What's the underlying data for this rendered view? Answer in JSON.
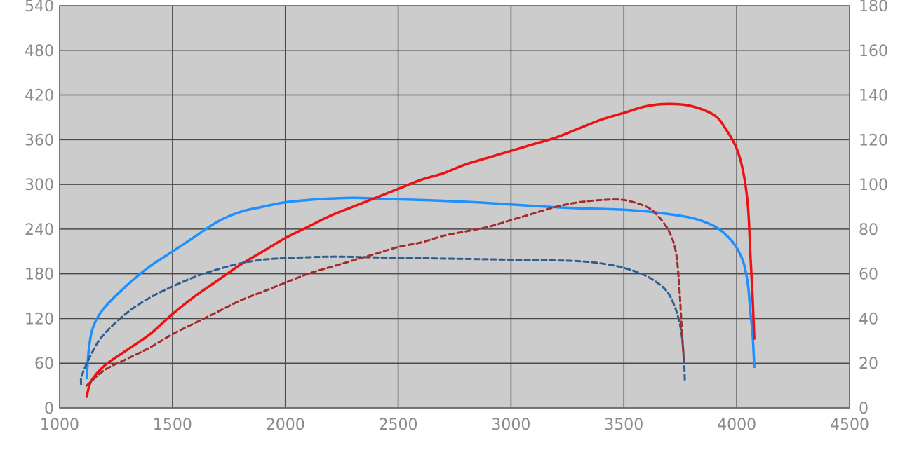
{
  "chart_data": {
    "type": "line",
    "title": "",
    "xlabel": "",
    "ylabel": "",
    "y2label": "",
    "xlim": [
      1000,
      4500
    ],
    "ylim": [
      0,
      540
    ],
    "y2lim": [
      0,
      180
    ],
    "grid": true,
    "xticks": [
      1000,
      1500,
      2000,
      2500,
      3000,
      3500,
      4000,
      4500
    ],
    "yticks": [
      0,
      60,
      120,
      180,
      240,
      300,
      360,
      420,
      480,
      540
    ],
    "y2ticks": [
      0,
      20,
      40,
      60,
      80,
      100,
      120,
      140,
      160,
      180
    ],
    "colors": {
      "plot_background": "#cccccc",
      "grid": "#4a4a4a",
      "tick_text": "#8a8a8a"
    },
    "series": [
      {
        "axis": "left",
        "color": "#1e90ff",
        "dash": "solid",
        "points": [
          [
            1120,
            40
          ],
          [
            1130,
            80
          ],
          [
            1150,
            110
          ],
          [
            1200,
            135
          ],
          [
            1300,
            165
          ],
          [
            1400,
            190
          ],
          [
            1500,
            210
          ],
          [
            1600,
            230
          ],
          [
            1700,
            250
          ],
          [
            1800,
            263
          ],
          [
            1900,
            270
          ],
          [
            2000,
            276
          ],
          [
            2100,
            279
          ],
          [
            2200,
            281
          ],
          [
            2300,
            282
          ],
          [
            2400,
            281
          ],
          [
            2500,
            280
          ],
          [
            2700,
            278
          ],
          [
            2900,
            275
          ],
          [
            3100,
            271
          ],
          [
            3300,
            268
          ],
          [
            3500,
            266
          ],
          [
            3650,
            262
          ],
          [
            3800,
            255
          ],
          [
            3900,
            244
          ],
          [
            3960,
            230
          ],
          [
            4000,
            215
          ],
          [
            4030,
            195
          ],
          [
            4050,
            165
          ],
          [
            4060,
            130
          ],
          [
            4070,
            100
          ],
          [
            4078,
            55
          ]
        ]
      },
      {
        "axis": "right",
        "color": "#ee1111",
        "dash": "solid",
        "points": [
          [
            1120,
            5
          ],
          [
            1140,
            12
          ],
          [
            1200,
            19
          ],
          [
            1300,
            26
          ],
          [
            1400,
            33
          ],
          [
            1500,
            42
          ],
          [
            1600,
            50
          ],
          [
            1700,
            57
          ],
          [
            1800,
            64
          ],
          [
            1900,
            70
          ],
          [
            2000,
            76
          ],
          [
            2100,
            81
          ],
          [
            2200,
            86
          ],
          [
            2300,
            90
          ],
          [
            2400,
            94
          ],
          [
            2500,
            98
          ],
          [
            2600,
            102
          ],
          [
            2700,
            105
          ],
          [
            2800,
            109
          ],
          [
            2900,
            112
          ],
          [
            3000,
            115
          ],
          [
            3100,
            118
          ],
          [
            3200,
            121
          ],
          [
            3300,
            125
          ],
          [
            3400,
            129
          ],
          [
            3500,
            132
          ],
          [
            3600,
            135
          ],
          [
            3700,
            136
          ],
          [
            3800,
            135
          ],
          [
            3900,
            131
          ],
          [
            3950,
            125
          ],
          [
            4000,
            116
          ],
          [
            4030,
            105
          ],
          [
            4050,
            90
          ],
          [
            4060,
            70
          ],
          [
            4070,
            50
          ],
          [
            4078,
            31
          ]
        ]
      },
      {
        "axis": "left",
        "color": "#2e5f8f",
        "dash": "dashed",
        "points": [
          [
            1095,
            32
          ],
          [
            1100,
            45
          ],
          [
            1150,
            78
          ],
          [
            1200,
            100
          ],
          [
            1300,
            128
          ],
          [
            1400,
            148
          ],
          [
            1500,
            163
          ],
          [
            1600,
            176
          ],
          [
            1700,
            186
          ],
          [
            1800,
            194
          ],
          [
            1900,
            199
          ],
          [
            2000,
            201
          ],
          [
            2200,
            203
          ],
          [
            2400,
            202
          ],
          [
            2600,
            201
          ],
          [
            2800,
            200
          ],
          [
            3000,
            199
          ],
          [
            3200,
            198
          ],
          [
            3300,
            197
          ],
          [
            3400,
            194
          ],
          [
            3500,
            188
          ],
          [
            3600,
            177
          ],
          [
            3680,
            160
          ],
          [
            3720,
            140
          ],
          [
            3750,
            110
          ],
          [
            3765,
            70
          ],
          [
            3770,
            38
          ]
        ]
      },
      {
        "axis": "right",
        "color": "#a52a2a",
        "dash": "dashed",
        "points": [
          [
            1120,
            10
          ],
          [
            1200,
            17
          ],
          [
            1300,
            22
          ],
          [
            1400,
            27
          ],
          [
            1500,
            33
          ],
          [
            1600,
            38
          ],
          [
            1700,
            43
          ],
          [
            1800,
            48
          ],
          [
            1900,
            52
          ],
          [
            2000,
            56
          ],
          [
            2100,
            60
          ],
          [
            2200,
            63
          ],
          [
            2300,
            66
          ],
          [
            2400,
            69
          ],
          [
            2500,
            72
          ],
          [
            2600,
            74
          ],
          [
            2700,
            77
          ],
          [
            2800,
            79
          ],
          [
            2900,
            81
          ],
          [
            3000,
            84
          ],
          [
            3100,
            87
          ],
          [
            3200,
            90
          ],
          [
            3300,
            92
          ],
          [
            3400,
            93
          ],
          [
            3500,
            93
          ],
          [
            3600,
            90
          ],
          [
            3650,
            86
          ],
          [
            3700,
            79
          ],
          [
            3730,
            70
          ],
          [
            3745,
            55
          ],
          [
            3755,
            38
          ],
          [
            3765,
            22
          ]
        ]
      }
    ]
  }
}
